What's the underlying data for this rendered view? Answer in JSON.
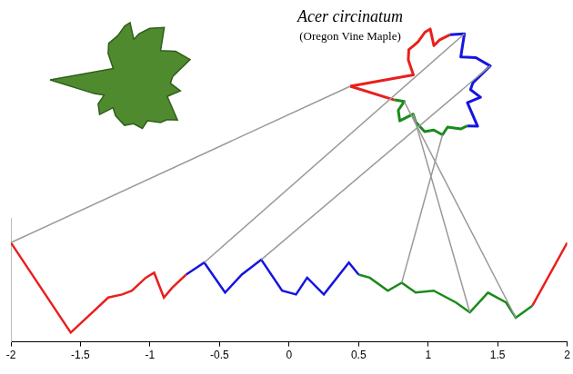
{
  "chart_data": {
    "type": "line",
    "title": "Acer circinatum",
    "subtitle": "(Oregon Vine Maple)",
    "x": [
      -2,
      -1.57,
      -1.4,
      -1.3,
      -1.2,
      -1.13,
      -1.03,
      -0.97,
      -0.9,
      -0.84,
      -0.74,
      -0.61,
      -0.46,
      -0.34,
      -0.2,
      -0.05,
      0.05,
      0.13,
      0.25,
      0.43,
      0.5,
      0.58,
      0.71,
      0.81,
      0.91,
      1.04,
      1.2,
      1.3,
      1.43,
      1.56,
      1.63,
      1.75,
      2
    ],
    "series": [
      {
        "color": "#e8201c",
        "values": [
          1.2,
          -1.7,
          -0.99,
          -0.57,
          -0.47,
          -0.35,
          0.07,
          0.23,
          -0.57,
          -0.25,
          0.17,
          null,
          null,
          null,
          null,
          null,
          null,
          null,
          null,
          null,
          null,
          null,
          null,
          null,
          null,
          null,
          null,
          null,
          null,
          null,
          null,
          -0.83,
          1.2
        ]
      },
      {
        "color": "#1515e0",
        "values": [
          null,
          null,
          null,
          null,
          null,
          null,
          null,
          null,
          null,
          null,
          0.17,
          0.56,
          -0.41,
          0.17,
          0.65,
          -0.35,
          -0.47,
          0.07,
          -0.47,
          0.56,
          0.17,
          null,
          null,
          null,
          null,
          null,
          null,
          null,
          null,
          null,
          null,
          null,
          null
        ]
      },
      {
        "color": "#1a8a1a",
        "values": [
          null,
          null,
          null,
          null,
          null,
          null,
          null,
          null,
          null,
          null,
          null,
          null,
          null,
          null,
          null,
          null,
          null,
          null,
          null,
          null,
          0.17,
          0.07,
          -0.35,
          -0.09,
          -0.41,
          -0.35,
          -0.73,
          -1.05,
          -0.41,
          -0.73,
          -1.22,
          -0.83,
          null
        ]
      }
    ],
    "xlim": [
      -2,
      2
    ],
    "xticks": [
      -2,
      -1.5,
      -1,
      -0.5,
      0,
      0.5,
      1,
      1.5,
      2
    ],
    "ylim": [
      -2,
      2
    ],
    "tick_labels": "x",
    "grid": false
  }
}
